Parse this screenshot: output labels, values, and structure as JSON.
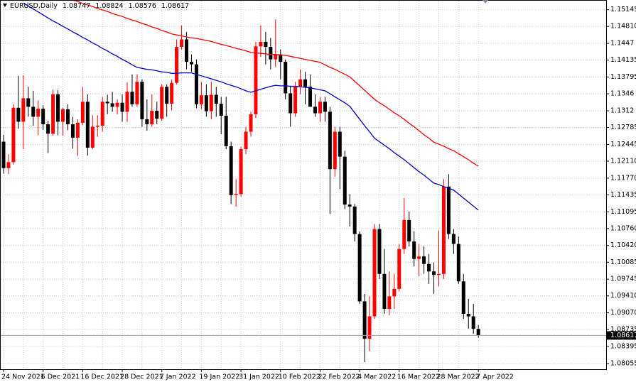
{
  "chart_data": {
    "type": "candlestick",
    "title": "EURUSD,Daily",
    "categories": [
      "24 Nov 2021",
      null,
      null,
      null,
      null,
      null,
      null,
      null,
      "6 Dec 2021",
      null,
      null,
      null,
      null,
      null,
      null,
      null,
      "16 Dec 2021",
      null,
      null,
      null,
      null,
      null,
      null,
      null,
      "28 Dec 2021",
      null,
      null,
      null,
      null,
      null,
      null,
      null,
      "7 Jan 2022",
      null,
      null,
      null,
      null,
      null,
      null,
      null,
      "19 Jan 2022",
      null,
      null,
      null,
      null,
      null,
      null,
      null,
      "31 Jan 2022",
      null,
      null,
      null,
      null,
      null,
      null,
      null,
      "10 Feb 2022",
      null,
      null,
      null,
      null,
      null,
      null,
      null,
      "22 Feb 2022",
      null,
      null,
      null,
      null,
      null,
      null,
      null,
      "4 Mar 2022",
      null,
      null,
      null,
      null,
      null,
      null,
      null,
      "16 Mar 2022",
      null,
      null,
      null,
      null,
      null,
      null,
      null,
      "28 Mar 2022",
      null,
      null,
      null,
      null,
      null,
      null,
      null,
      "7 Apr 2022"
    ],
    "open": [
      1.125,
      1.1197,
      1.1209,
      1.1318,
      1.129,
      1.1337,
      1.132,
      1.13,
      1.1316,
      1.1285,
      1.1266,
      1.1345,
      1.129,
      1.1315,
      1.1285,
      1.1258,
      1.1288,
      1.133,
      1.1238,
      1.128,
      1.1282,
      1.133,
      1.1327,
      1.132,
      1.1328,
      1.131,
      1.135,
      1.1325,
      1.137,
      1.1295,
      1.1285,
      1.1312,
      1.1296,
      1.136,
      1.1326,
      1.1368,
      1.144,
      1.1455,
      1.141,
      1.1405,
      1.1325,
      1.1343,
      1.1311,
      1.1344,
      1.1326,
      1.1302,
      1.1241,
      1.1143,
      1.1145,
      1.1235,
      1.127,
      1.1305,
      1.1441,
      1.145,
      1.144,
      1.1415,
      1.1425,
      1.141,
      1.1347,
      1.1307,
      1.136,
      1.1375,
      1.136,
      1.132,
      1.1307,
      1.133,
      1.131,
      1.1195,
      1.127,
      1.122,
      1.1124,
      1.112,
      1.1065,
      1.093,
      1.0855,
      1.09,
      1.1075,
      1.0985,
      1.0915,
      1.094,
      1.0955,
      1.1035,
      1.1093,
      1.105,
      1.1015,
      1.102,
      1.1005,
      1.099,
      1.0983,
      1.0985,
      1.116,
      1.1065,
      1.1045,
      1.097,
      1.0905,
      1.09,
      1.08747
    ],
    "high": [
      1.1264,
      1.1225,
      1.1325,
      1.1382,
      1.1383,
      1.136,
      1.1352,
      1.1333,
      1.1323,
      1.1292,
      1.1355,
      1.1353,
      1.1318,
      1.1325,
      1.13,
      1.1295,
      1.136,
      1.1345,
      1.1303,
      1.1303,
      1.134,
      1.1344,
      1.135,
      1.1335,
      1.1345,
      1.1369,
      1.1385,
      1.1385,
      1.1375,
      1.1335,
      1.1345,
      1.133,
      1.1365,
      1.1365,
      1.1375,
      1.1455,
      1.1483,
      1.147,
      1.1425,
      1.1415,
      1.137,
      1.1365,
      1.137,
      1.136,
      1.134,
      1.134,
      1.125,
      1.1175,
      1.124,
      1.128,
      1.131,
      1.145,
      1.1483,
      1.147,
      1.1458,
      1.1495,
      1.1435,
      1.1415,
      1.1362,
      1.137,
      1.1395,
      1.139,
      1.1385,
      1.1345,
      1.134,
      1.134,
      1.132,
      1.128,
      1.128,
      1.1232,
      1.1145,
      1.1125,
      1.107,
      1.0945,
      1.094,
      1.1085,
      1.1085,
      1.1035,
      1.099,
      1.0985,
      1.1045,
      1.1137,
      1.111,
      1.107,
      1.1045,
      1.104,
      1.1025,
      1.1008,
      1.1072,
      1.1175,
      1.1185,
      1.1075,
      1.106,
      1.0985,
      1.0935,
      1.0925,
      1.08824
    ],
    "low": [
      1.1186,
      1.1185,
      1.1204,
      1.1276,
      1.1235,
      1.13,
      1.1282,
      1.1263,
      1.1274,
      1.1227,
      1.1262,
      1.1263,
      1.1262,
      1.1273,
      1.1236,
      1.1222,
      1.1283,
      1.1222,
      1.1235,
      1.126,
      1.127,
      1.1305,
      1.131,
      1.1305,
      1.129,
      1.129,
      1.132,
      1.132,
      1.128,
      1.1272,
      1.128,
      1.1285,
      1.1292,
      1.13,
      1.1313,
      1.1365,
      1.1435,
      1.1395,
      1.139,
      1.1317,
      1.1315,
      1.13,
      1.1295,
      1.13,
      1.1265,
      1.1235,
      1.1125,
      1.112,
      1.114,
      1.1225,
      1.126,
      1.1297,
      1.142,
      1.1405,
      1.1395,
      1.14,
      1.1375,
      1.1335,
      1.128,
      1.13,
      1.1345,
      1.1325,
      1.1325,
      1.13,
      1.129,
      1.129,
      1.1105,
      1.118,
      1.1155,
      1.1115,
      1.108,
      1.105,
      1.0925,
      1.0808,
      1.083,
      1.0895,
      1.0975,
      1.0905,
      1.0902,
      1.0915,
      1.095,
      1.1025,
      1.104,
      1.1,
      1.098,
      1.0985,
      1.0965,
      1.0945,
      1.096,
      1.0975,
      1.1055,
      1.1025,
      1.0965,
      1.0895,
      1.0875,
      1.0865,
      1.08576
    ],
    "close": [
      1.1197,
      1.1209,
      1.1318,
      1.129,
      1.1337,
      1.132,
      1.13,
      1.1316,
      1.1285,
      1.1266,
      1.1345,
      1.129,
      1.1315,
      1.1285,
      1.1258,
      1.1288,
      1.133,
      1.1238,
      1.128,
      1.1282,
      1.133,
      1.1327,
      1.132,
      1.1328,
      1.131,
      1.135,
      1.1325,
      1.137,
      1.1295,
      1.1285,
      1.1312,
      1.1296,
      1.136,
      1.1326,
      1.1368,
      1.144,
      1.1455,
      1.141,
      1.1405,
      1.1325,
      1.1343,
      1.1311,
      1.1344,
      1.1326,
      1.1302,
      1.1241,
      1.1143,
      1.1145,
      1.1235,
      1.127,
      1.1305,
      1.1441,
      1.145,
      1.144,
      1.1415,
      1.1425,
      1.141,
      1.1347,
      1.1307,
      1.136,
      1.1375,
      1.136,
      1.132,
      1.1307,
      1.133,
      1.131,
      1.1195,
      1.127,
      1.122,
      1.1124,
      1.112,
      1.1065,
      1.093,
      1.0855,
      1.09,
      1.1075,
      1.0985,
      1.0915,
      1.094,
      1.0955,
      1.1035,
      1.1093,
      1.105,
      1.1015,
      1.102,
      1.1005,
      1.099,
      1.0983,
      1.0985,
      1.116,
      1.1065,
      1.1045,
      1.097,
      1.0905,
      1.09,
      1.0875,
      1.08617
    ],
    "up_color": "#ff0000",
    "down_color": "#000000",
    "moving_averages": [
      {
        "color": "#0000c8",
        "values": [
          null,
          null,
          null,
          null,
          1.1528,
          1.1522,
          1.1516,
          1.151,
          1.1504,
          1.1498,
          1.1492,
          1.1487,
          1.1481,
          1.1476,
          1.147,
          1.1465,
          1.1459,
          1.1454,
          1.1448,
          1.1443,
          1.1437,
          1.1432,
          1.1426,
          1.1421,
          1.1415,
          1.141,
          1.1404,
          1.1399,
          1.1397,
          1.1395,
          1.1394,
          1.1392,
          1.139,
          1.1389,
          1.1387,
          1.1387,
          1.1388,
          1.1388,
          1.1388,
          1.1385,
          1.1382,
          1.1379,
          1.1376,
          1.1373,
          1.137,
          1.1366,
          1.1363,
          1.136,
          1.1356,
          1.1352,
          1.1349,
          1.1352,
          1.1355,
          1.1358,
          1.1361,
          1.1363,
          1.1362,
          1.1362,
          1.1361,
          1.1361,
          1.136,
          1.1359,
          1.1358,
          1.1356,
          1.1354,
          1.1352,
          1.1346,
          1.134,
          1.1334,
          1.1328,
          1.1321,
          1.1308,
          1.1295,
          1.1282,
          1.127,
          1.1257,
          1.125,
          1.1243,
          1.1236,
          1.1228,
          1.1221,
          1.1214,
          1.1206,
          1.1198,
          1.119,
          1.1183,
          1.1175,
          1.1167,
          1.1164,
          1.116,
          1.1157,
          1.1153,
          1.1145,
          1.1137,
          1.1129,
          1.1121,
          1.1113
        ]
      },
      {
        "color": "#ff0000",
        "values": [
          null,
          null,
          null,
          null,
          null,
          null,
          null,
          null,
          null,
          null,
          null,
          null,
          null,
          null,
          1.1534,
          1.1531,
          1.1527,
          1.1524,
          1.1521,
          1.1517,
          1.1514,
          1.1511,
          1.1507,
          1.1504,
          1.1501,
          1.1497,
          1.1494,
          1.1491,
          1.1487,
          1.1484,
          1.148,
          1.1477,
          1.1473,
          1.147,
          1.1466,
          1.1464,
          1.1462,
          1.146,
          1.1458,
          1.1457,
          1.1455,
          1.1453,
          1.1451,
          1.1448,
          1.1445,
          1.1443,
          1.144,
          1.1437,
          1.1435,
          1.1432,
          1.1429,
          1.1428,
          1.1427,
          1.1426,
          1.1425,
          1.1425,
          1.1424,
          1.1423,
          1.1421,
          1.1419,
          1.1417,
          1.1415,
          1.1413,
          1.1411,
          1.1409,
          1.1404,
          1.1399,
          1.1395,
          1.139,
          1.1385,
          1.138,
          1.1371,
          1.1362,
          1.1353,
          1.1344,
          1.1335,
          1.1328,
          1.1322,
          1.1315,
          1.1308,
          1.1302,
          1.1295,
          1.1287,
          1.128,
          1.1272,
          1.1264,
          1.1257,
          1.1249,
          1.1245,
          1.1241,
          1.1236,
          1.1232,
          1.1226,
          1.122,
          1.1214,
          1.1207,
          1.1201
        ]
      }
    ],
    "ylim": [
      1.0794,
      1.1534
    ],
    "yticks": [
      1.15145,
      {
        "value": 1.1481,
        "label": "1.14810"
      },
      1.1447,
      1.14135,
      1.13795,
      1.1346,
      1.1312,
      1.12785,
      1.12445,
      {
        "value": 1.1211,
        "label": "1.12110"
      },
      {
        "value": 1.1177,
        "label": "1.11770"
      },
      1.11435,
      1.11095,
      {
        "value": 1.1076,
        "label": "1.10760"
      },
      {
        "value": 1.1042,
        "label": "1.10420"
      },
      1.10085,
      1.09745,
      {
        "value": 1.0941,
        "label": "1.09410"
      },
      {
        "value": 1.0907,
        "label": "1.09070"
      },
      1.08735,
      1.08395,
      1.08055
    ],
    "grid": true
  }
}
